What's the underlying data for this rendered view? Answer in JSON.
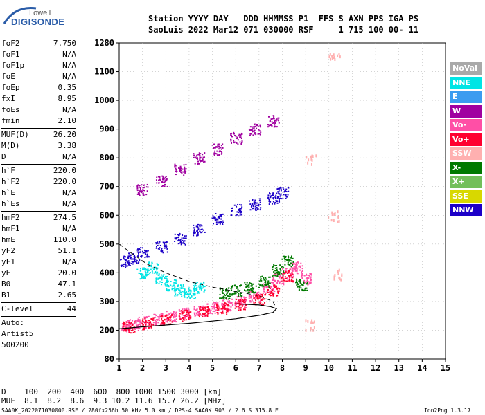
{
  "logo": {
    "top": "Lowell",
    "bottom": "DIGISONDE"
  },
  "header": {
    "line1": "Station YYYY DAY   DDD HHMMSS P1  FFS S AXN PPS IGA PS",
    "line2": "SaoLuis 2022 Mar12 071 030000 RSF     1 715 100 00- 11"
  },
  "params": [
    {
      "name": "foF2",
      "value": "7.750"
    },
    {
      "name": "foF1",
      "value": "N/A"
    },
    {
      "name": "foF1p",
      "value": "N/A"
    },
    {
      "name": "foE",
      "value": "N/A"
    },
    {
      "name": "foEp",
      "value": "0.35"
    },
    {
      "name": "fxI",
      "value": "8.95"
    },
    {
      "name": "foEs",
      "value": "N/A"
    },
    {
      "name": "fmin",
      "value": "2.10"
    },
    {
      "sep": true
    },
    {
      "name": "MUF(D)",
      "value": "26.20"
    },
    {
      "name": "M(D)",
      "value": "3.38"
    },
    {
      "name": "D",
      "value": "N/A"
    },
    {
      "sep": true
    },
    {
      "name": "h`F",
      "value": "220.0"
    },
    {
      "name": "h`F2",
      "value": "220.0"
    },
    {
      "name": "h`E",
      "value": "N/A"
    },
    {
      "name": "h`Es",
      "value": "N/A"
    },
    {
      "sep": true
    },
    {
      "name": "hmF2",
      "value": "274.5"
    },
    {
      "name": "hmF1",
      "value": "N/A"
    },
    {
      "name": "hmE",
      "value": "110.0"
    },
    {
      "name": "yF2",
      "value": "51.1"
    },
    {
      "name": "yF1",
      "value": "N/A"
    },
    {
      "name": "yE",
      "value": "20.0"
    },
    {
      "name": "B0",
      "value": "47.1"
    },
    {
      "name": "B1",
      "value": "2.65"
    },
    {
      "sep": true
    },
    {
      "name": "C-level",
      "value": "44"
    },
    {
      "sep": true
    }
  ],
  "auto": [
    "Auto:",
    "Artist5",
    "500200"
  ],
  "legend": [
    {
      "label": "NoVal",
      "color": "#a9a9a9"
    },
    {
      "label": "NNE",
      "color": "#00e5e5"
    },
    {
      "label": "E",
      "color": "#3b9cf0"
    },
    {
      "label": "W",
      "color": "#a000a0"
    },
    {
      "label": "Vo-",
      "color": "#ff4fa6"
    },
    {
      "label": "Vo+",
      "color": "#ff0030"
    },
    {
      "label": "SSW",
      "color": "#ffb0b0"
    },
    {
      "label": "X-",
      "color": "#007a00"
    },
    {
      "label": "X+",
      "color": "#73bf5a"
    },
    {
      "label": "SSE",
      "color": "#d8d800"
    },
    {
      "label": "NNW",
      "color": "#1c00c8"
    }
  ],
  "bottom": {
    "d_line": "D    100  200  400  600  800 1000 1500 3000 [km]",
    "muf_line": "MUF  8.1  8.2  8.6  9.3 10.2 11.6 15.7 26.2 [MHz]"
  },
  "footer": {
    "left": "SAA0K_2022071030000.RSF / 280fx256h 50 kHz 5.0 km / DPS-4 SAA0K 903 / 2.6 S 315.8 E",
    "right": "Ion2Png 1.3.17"
  },
  "chart_data": {
    "type": "scatter",
    "x_ticks": [
      1,
      2,
      3,
      4,
      5,
      6,
      7,
      8,
      9,
      10,
      11,
      12,
      13,
      14,
      15
    ],
    "y_ticks": [
      80,
      200,
      300,
      400,
      500,
      600,
      700,
      800,
      900,
      1000,
      1100,
      1280
    ],
    "xlim": [
      1,
      15
    ],
    "ylim": [
      80,
      1280
    ],
    "series": [
      {
        "color": "#ff4fa6",
        "x": [
          1.2,
          1.6,
          2.0,
          2.6,
          3.2,
          3.8,
          4.4,
          5.0,
          5.6,
          6.2,
          6.8,
          7.4,
          7.8,
          8.2,
          8.6,
          9.0
        ],
        "y": [
          215,
          220,
          230,
          240,
          250,
          260,
          270,
          280,
          290,
          300,
          320,
          350,
          380,
          400,
          420,
          380
        ]
      },
      {
        "color": "#ff0030",
        "x": [
          1.4,
          2.2,
          3.0,
          3.8,
          4.6,
          5.4,
          6.2,
          7.0,
          7.6,
          8.2
        ],
        "y": [
          212,
          224,
          238,
          252,
          266,
          278,
          292,
          310,
          340,
          390
        ]
      },
      {
        "color": "#1c00c8",
        "x": [
          1.2,
          1.6,
          2.0,
          2.8,
          3.6,
          4.4,
          5.2,
          6.0,
          6.8,
          7.6,
          8.0
        ],
        "y": [
          440,
          450,
          470,
          490,
          520,
          550,
          590,
          620,
          640,
          660,
          680
        ]
      },
      {
        "color": "#00e5e5",
        "x": [
          2.0,
          2.4,
          2.8,
          3.2,
          3.6,
          4.0,
          4.4
        ],
        "y": [
          400,
          420,
          380,
          360,
          340,
          330,
          350
        ]
      },
      {
        "color": "#007a00",
        "x": [
          5.5,
          6.0,
          6.6,
          7.2,
          7.8,
          8.2,
          8.8
        ],
        "y": [
          330,
          340,
          350,
          370,
          410,
          440,
          360
        ]
      },
      {
        "color": "#a000a0",
        "x": [
          2.0,
          2.8,
          3.6,
          4.4,
          5.2,
          6.0,
          6.8,
          7.6
        ],
        "y": [
          690,
          720,
          760,
          800,
          830,
          870,
          900,
          930
        ]
      },
      {
        "color": "#ffb0b0",
        "x": [
          9.2,
          9.2,
          10.2,
          10.4,
          10.2
        ],
        "y": [
          220,
          800,
          600,
          400,
          1200
        ]
      }
    ]
  }
}
